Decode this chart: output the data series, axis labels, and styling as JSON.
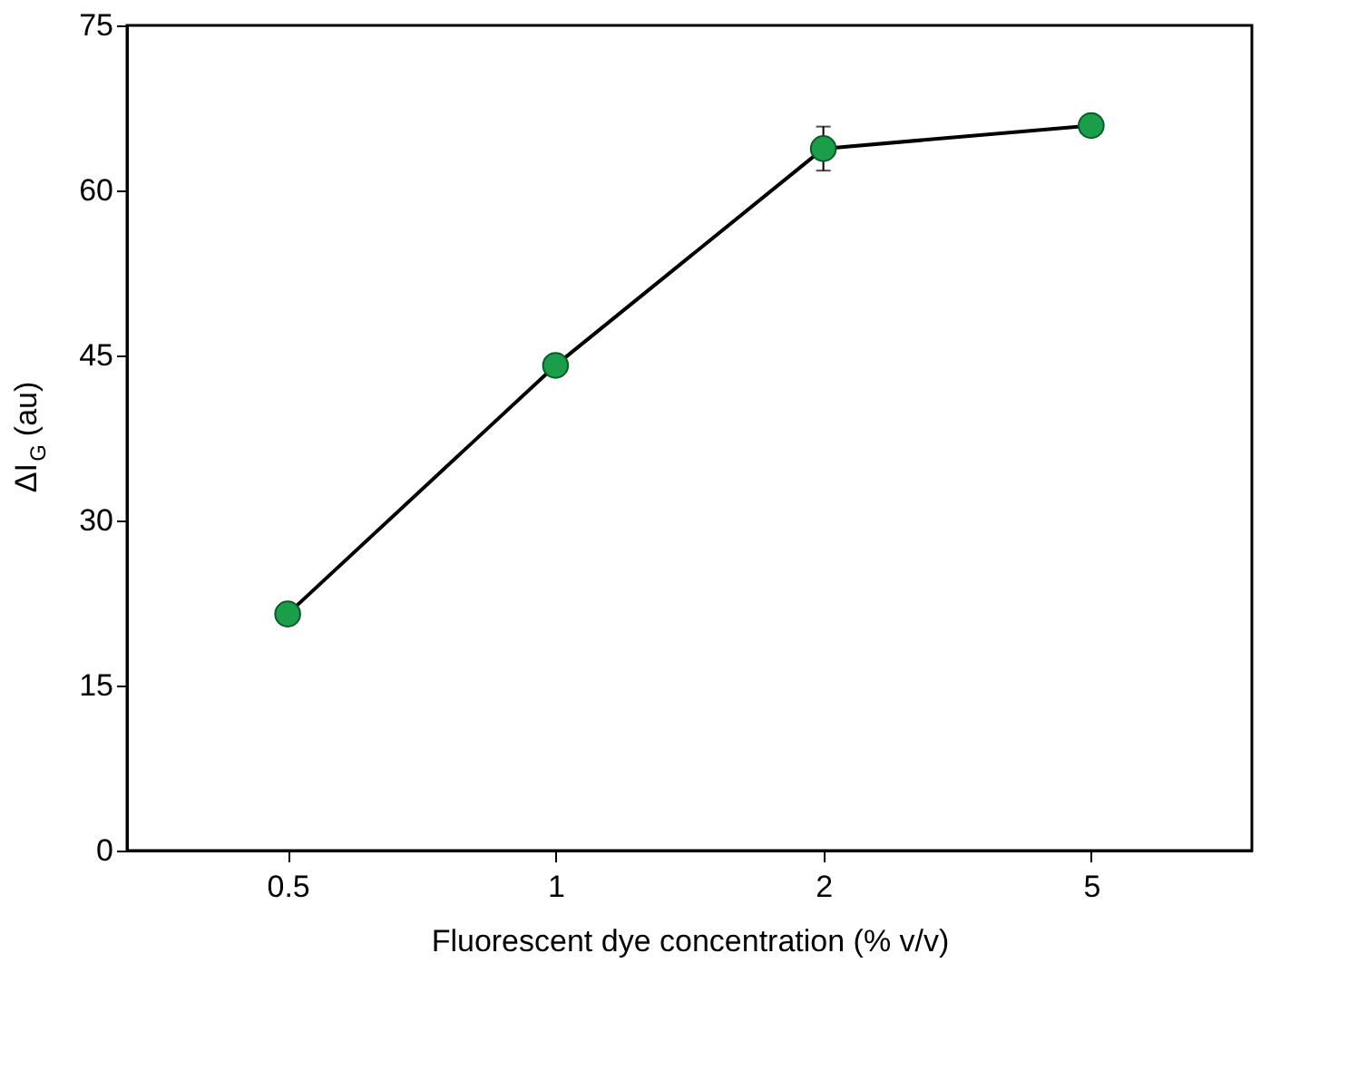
{
  "chart_data": {
    "type": "line",
    "xlabel": "Fluorescent dye concentration (% v/v)",
    "ylabel": "ΔI$_{G}$ (au)",
    "categories": [
      "0.5",
      "1",
      "2",
      "5"
    ],
    "series": [
      {
        "color": "#1a9e4a",
        "values": [
          21.5,
          44.1,
          63.8,
          65.9
        ],
        "errors": [
          null,
          null,
          2,
          null
        ]
      }
    ],
    "ylim": [
      0,
      75
    ],
    "yticks": [
      0,
      15,
      30,
      45,
      60,
      75
    ],
    "marker": "circle",
    "line_style": "solid",
    "grid": false
  }
}
